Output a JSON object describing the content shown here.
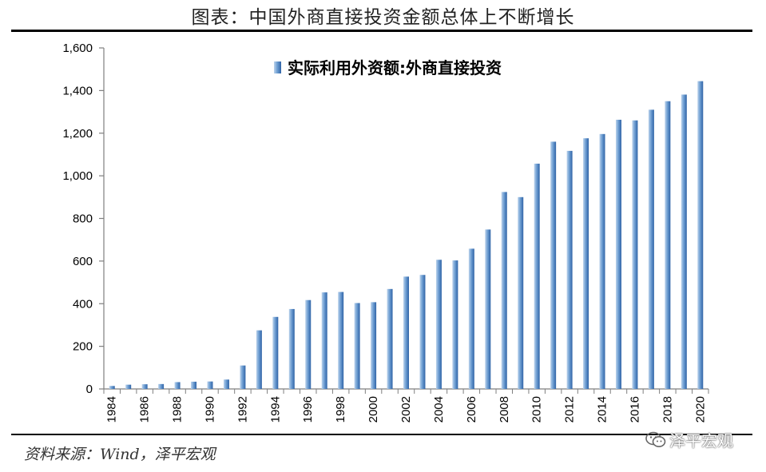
{
  "title": "图表：中国外商直接投资金额总体上不断增长",
  "source": "资料来源：Wind，泽平宏观",
  "watermark": "泽平宏观",
  "colors": {
    "bar_light": "#bcd3ec",
    "bar_mid": "#6f9fd3",
    "bar_dark": "#2f63a6",
    "axis": "#7f7f7f"
  },
  "chart_data": {
    "type": "bar",
    "title": "",
    "xlabel": "",
    "ylabel": "",
    "ylim": [
      0,
      1600
    ],
    "yticks": [
      0,
      200,
      400,
      600,
      800,
      1000,
      1200,
      1400,
      1600
    ],
    "ytick_labels": [
      "0",
      "200",
      "400",
      "600",
      "800",
      "1,000",
      "1,200",
      "1,400",
      "1,600"
    ],
    "legend_placement": "top-center",
    "grid": false,
    "categories": [
      "1984",
      "1985",
      "1986",
      "1987",
      "1988",
      "1989",
      "1990",
      "1991",
      "1992",
      "1993",
      "1994",
      "1995",
      "1996",
      "1997",
      "1998",
      "1999",
      "2000",
      "2001",
      "2002",
      "2003",
      "2004",
      "2005",
      "2006",
      "2007",
      "2008",
      "2009",
      "2010",
      "2011",
      "2012",
      "2013",
      "2014",
      "2015",
      "2016",
      "2017",
      "2018",
      "2019",
      "2020"
    ],
    "xtick_labels": [
      "1984",
      "1986",
      "1988",
      "1990",
      "1992",
      "1994",
      "1996",
      "1998",
      "2000",
      "2002",
      "2004",
      "2006",
      "2008",
      "2010",
      "2012",
      "2014",
      "2016",
      "2018",
      "2020"
    ],
    "series": [
      {
        "name": "实际利用外资额:外商直接投资",
        "values": [
          14,
          20,
          22,
          23,
          32,
          34,
          35,
          44,
          110,
          275,
          338,
          375,
          417,
          453,
          455,
          403,
          407,
          469,
          527,
          535,
          606,
          603,
          658,
          748,
          924,
          900,
          1057,
          1160,
          1117,
          1176,
          1196,
          1263,
          1260,
          1310,
          1350,
          1381,
          1444
        ]
      }
    ]
  }
}
